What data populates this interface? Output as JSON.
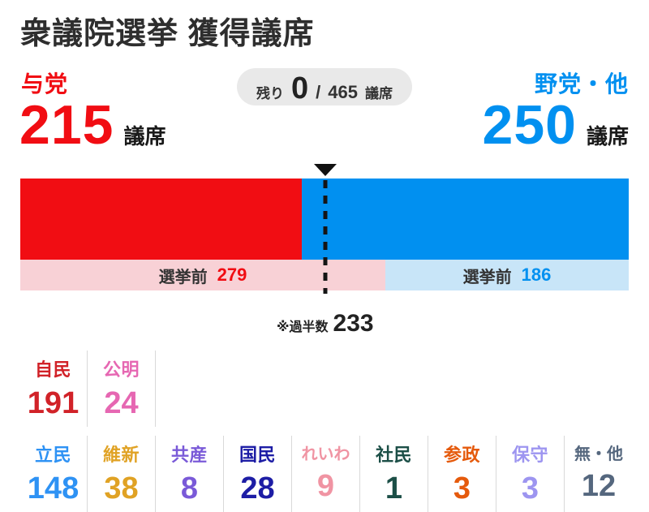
{
  "title": "衆議院選挙 獲得議席",
  "colors": {
    "red": "#f10d13",
    "blue": "#0190f0",
    "pink_bg": "#f8d1d6",
    "lightblue_bg": "#c8e5f8",
    "pill_bg": "#e9e9e9"
  },
  "ruling": {
    "label": "与党",
    "seats": "215",
    "unit": "議席"
  },
  "opposition": {
    "label": "野党・他",
    "seats": "250",
    "unit": "議席"
  },
  "remaining": {
    "prefix": "残り",
    "value": "0",
    "slash": "/",
    "total": "465",
    "unit": "議席"
  },
  "pre_election": {
    "left": {
      "label": "選挙前",
      "value": "279"
    },
    "right": {
      "label": "選挙前",
      "value": "186"
    }
  },
  "majority_note": {
    "prefix": "※過半数",
    "value": "233"
  },
  "chart_data": {
    "type": "bar",
    "title": "衆議院選挙 獲得議席",
    "total_seats": 465,
    "remaining": 0,
    "majority": 233,
    "series": [
      {
        "name": "与党",
        "seats": 215,
        "pre_election": 279,
        "color": "#f10d13",
        "pre_color": "#f8d1d6"
      },
      {
        "name": "野党・他",
        "seats": 250,
        "pre_election": 186,
        "color": "#0190f0",
        "pre_color": "#c8e5f8"
      }
    ],
    "parties": [
      {
        "name": "自民",
        "seats": "191",
        "color": "#d12228",
        "bloc": "与党"
      },
      {
        "name": "公明",
        "seats": "24",
        "color": "#e667b2",
        "bloc": "与党"
      },
      {
        "name": "立民",
        "seats": "148",
        "color": "#2e92f4",
        "bloc": "野党・他"
      },
      {
        "name": "維新",
        "seats": "38",
        "color": "#e0a224",
        "bloc": "野党・他"
      },
      {
        "name": "共産",
        "seats": "8",
        "color": "#7a5ad8",
        "bloc": "野党・他"
      },
      {
        "name": "国民",
        "seats": "28",
        "color": "#1d1da5",
        "bloc": "野党・他"
      },
      {
        "name": "れいわ",
        "seats": "9",
        "color": "#f094a3",
        "bloc": "野党・他"
      },
      {
        "name": "社民",
        "seats": "1",
        "color": "#1c4f47",
        "bloc": "野党・他"
      },
      {
        "name": "参政",
        "seats": "3",
        "color": "#e55a0c",
        "bloc": "野党・他"
      },
      {
        "name": "保守",
        "seats": "3",
        "color": "#9d95f0",
        "bloc": "野党・他"
      },
      {
        "name": "無・他",
        "seats": "12",
        "color": "#55677e",
        "bloc": "野党・他"
      }
    ]
  }
}
